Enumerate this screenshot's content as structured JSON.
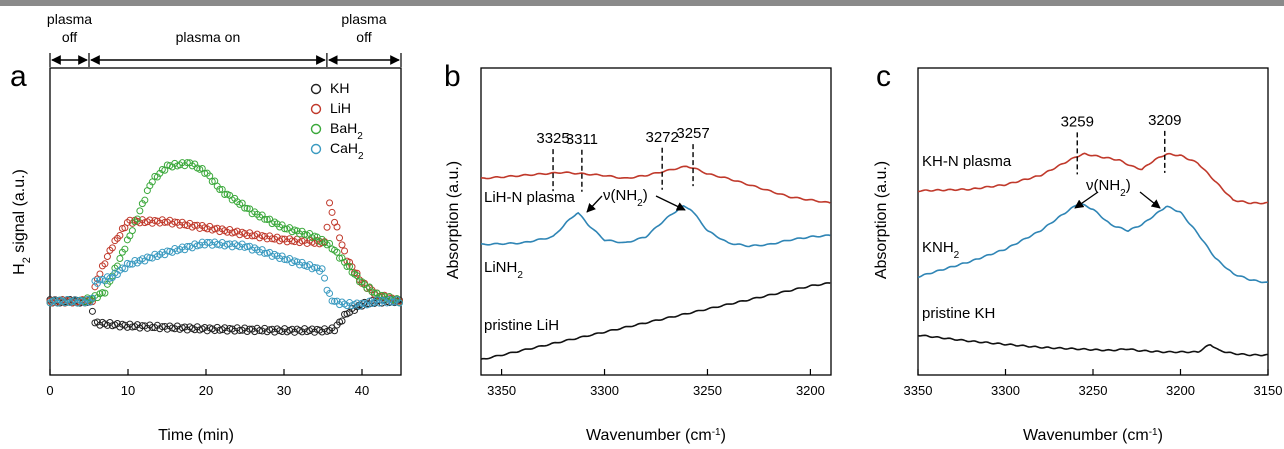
{
  "chart_data": [
    {
      "panel": "a",
      "type": "scatter",
      "xlabel": "Time (min)",
      "ylabel": "H2 signal (a.u.)",
      "xlim": [
        0,
        45
      ],
      "ylim": [
        0,
        1
      ],
      "xticks": [
        "0",
        "10",
        "20",
        "30",
        "40"
      ],
      "phase_labels": [
        {
          "text": "plasma",
          "text2": "off",
          "from": 0,
          "to": 5
        },
        {
          "text": "plasma on",
          "text2": "",
          "from": 5,
          "to": 35.5
        },
        {
          "text": "plasma",
          "text2": "off",
          "from": 35.5,
          "to": 45
        }
      ],
      "legend_placement": "top-right",
      "series": [
        {
          "name": "KH",
          "color": "#222222",
          "x": [
            0,
            5.4,
            5.5,
            10,
            20,
            30,
            35.5,
            36.5,
            38,
            40,
            42,
            45
          ],
          "y": [
            0.24,
            0.24,
            0.17,
            0.16,
            0.15,
            0.145,
            0.145,
            0.15,
            0.2,
            0.23,
            0.24,
            0.24
          ]
        },
        {
          "name": "LiH",
          "color": "#c0392b",
          "x": [
            0,
            5.4,
            6,
            8,
            10,
            15,
            20,
            25,
            30,
            35.3,
            35.8,
            36.5,
            38,
            40,
            42,
            45
          ],
          "y": [
            0.24,
            0.24,
            0.31,
            0.42,
            0.5,
            0.5,
            0.48,
            0.46,
            0.44,
            0.43,
            0.56,
            0.5,
            0.38,
            0.3,
            0.26,
            0.24
          ]
        },
        {
          "name": "BaH2",
          "color": "#3aa83a",
          "x": [
            0,
            4,
            5.5,
            7,
            9,
            11,
            13,
            15,
            18,
            20,
            22,
            26,
            30,
            34,
            36,
            38,
            40,
            42,
            45
          ],
          "y": [
            0.24,
            0.24,
            0.25,
            0.27,
            0.38,
            0.5,
            0.63,
            0.68,
            0.69,
            0.66,
            0.6,
            0.53,
            0.48,
            0.45,
            0.42,
            0.36,
            0.3,
            0.26,
            0.24
          ]
        },
        {
          "name": "CaH2",
          "color": "#3a9ac0",
          "x": [
            0,
            5.4,
            5.6,
            8,
            10,
            15,
            20,
            25,
            30,
            35,
            35.6,
            36.3,
            38,
            40,
            42,
            45
          ],
          "y": [
            0.24,
            0.24,
            0.3,
            0.32,
            0.36,
            0.4,
            0.43,
            0.42,
            0.38,
            0.34,
            0.27,
            0.24,
            0.23,
            0.23,
            0.24,
            0.24
          ]
        }
      ]
    },
    {
      "panel": "b",
      "type": "line",
      "xlabel": "Wavenumber (cm-1)",
      "ylabel": "Absorption (a.u.)",
      "xlim": [
        3360,
        3190
      ],
      "ylim": [
        0,
        1
      ],
      "xticks": [
        "3350",
        "3300",
        "3250",
        "3200"
      ],
      "series": [
        {
          "name": "LiH-N plasma",
          "color": "#c0392b",
          "x": [
            3360,
            3350,
            3340,
            3330,
            3320,
            3310,
            3300,
            3290,
            3280,
            3270,
            3260,
            3255,
            3250,
            3240,
            3230,
            3220,
            3210,
            3200,
            3190
          ],
          "y": [
            0.64,
            0.645,
            0.65,
            0.655,
            0.66,
            0.655,
            0.65,
            0.64,
            0.65,
            0.665,
            0.68,
            0.67,
            0.655,
            0.64,
            0.62,
            0.6,
            0.58,
            0.57,
            0.56
          ]
        },
        {
          "name": "LiNH2",
          "color": "#2f85b5",
          "x": [
            3360,
            3340,
            3325,
            3318,
            3313,
            3308,
            3300,
            3290,
            3280,
            3270,
            3262,
            3258,
            3250,
            3240,
            3230,
            3220,
            3210,
            3200,
            3190
          ],
          "y": [
            0.425,
            0.43,
            0.45,
            0.5,
            0.53,
            0.49,
            0.44,
            0.43,
            0.45,
            0.51,
            0.55,
            0.54,
            0.47,
            0.43,
            0.42,
            0.425,
            0.44,
            0.45,
            0.455
          ]
        },
        {
          "name": "pristine LiH",
          "color": "#111111",
          "x": [
            3360,
            3340,
            3320,
            3300,
            3280,
            3260,
            3240,
            3220,
            3200,
            3190
          ],
          "y": [
            0.05,
            0.08,
            0.11,
            0.14,
            0.17,
            0.2,
            0.23,
            0.26,
            0.29,
            0.3
          ]
        }
      ],
      "peak_labels": [
        "3325",
        "3311",
        "3272",
        "3257"
      ],
      "peak_positions": [
        3325,
        3311,
        3272,
        3257
      ],
      "annotation": "ν(NH2)",
      "curve_labels": [
        "LiH-N plasma",
        "LiNH2",
        "pristine LiH"
      ]
    },
    {
      "panel": "c",
      "type": "line",
      "xlabel": "Wavenumber (cm-1)",
      "ylabel": "Absorption (a.u.)",
      "xlim": [
        3350,
        3150
      ],
      "ylim": [
        0,
        1
      ],
      "xticks": [
        "3350",
        "3300",
        "3250",
        "3200",
        "3150"
      ],
      "series": [
        {
          "name": "KH-N plasma",
          "color": "#c0392b",
          "x": [
            3350,
            3320,
            3300,
            3280,
            3270,
            3260,
            3255,
            3245,
            3235,
            3228,
            3222,
            3215,
            3208,
            3200,
            3190,
            3180,
            3170,
            3160,
            3150
          ],
          "y": [
            0.6,
            0.605,
            0.62,
            0.65,
            0.68,
            0.71,
            0.72,
            0.71,
            0.7,
            0.68,
            0.67,
            0.7,
            0.72,
            0.715,
            0.69,
            0.63,
            0.57,
            0.56,
            0.56
          ]
        },
        {
          "name": "KNH2",
          "color": "#2f85b5",
          "x": [
            3350,
            3320,
            3300,
            3280,
            3268,
            3258,
            3250,
            3240,
            3230,
            3222,
            3215,
            3208,
            3200,
            3190,
            3180,
            3170,
            3160,
            3150
          ],
          "y": [
            0.32,
            0.37,
            0.41,
            0.47,
            0.52,
            0.56,
            0.54,
            0.49,
            0.47,
            0.49,
            0.52,
            0.55,
            0.53,
            0.46,
            0.38,
            0.33,
            0.31,
            0.3
          ]
        },
        {
          "name": "pristine KH",
          "color": "#111111",
          "x": [
            3350,
            3320,
            3300,
            3280,
            3260,
            3240,
            3230,
            3225,
            3210,
            3190,
            3183,
            3178,
            3170,
            3160,
            3150
          ],
          "y": [
            0.13,
            0.11,
            0.1,
            0.09,
            0.085,
            0.08,
            0.085,
            0.08,
            0.075,
            0.075,
            0.1,
            0.08,
            0.07,
            0.065,
            0.065
          ]
        }
      ],
      "peak_labels": [
        "3259",
        "3209"
      ],
      "peak_positions": [
        3259,
        3209
      ],
      "annotation": "ν(NH2)",
      "curve_labels": [
        "KH-N plasma",
        "KNH2",
        "pristine KH"
      ]
    }
  ]
}
